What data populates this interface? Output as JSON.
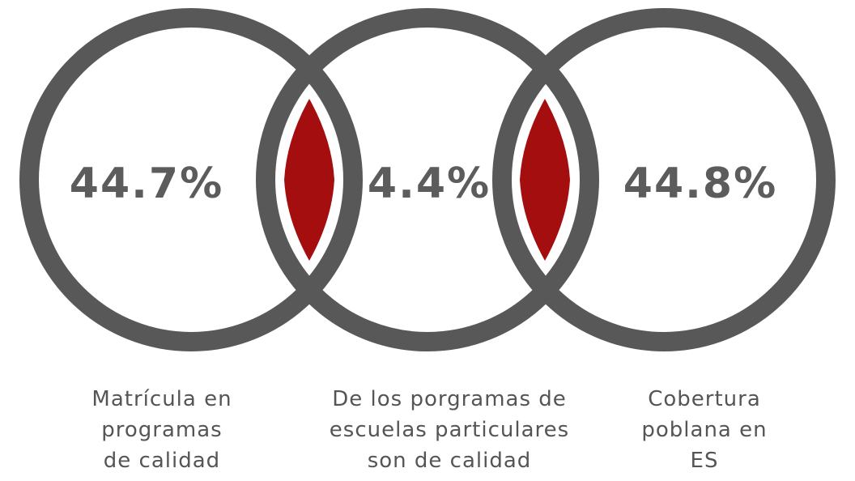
{
  "colors": {
    "ring": "#585858",
    "overlap_fill": "#a50e0e",
    "text": "#5c5c5c",
    "background": "#ffffff"
  },
  "circles": [
    {
      "value": "44.7%",
      "caption": [
        "Matrícula en",
        "programas",
        "de calidad"
      ]
    },
    {
      "value": "4.4%",
      "caption": [
        "De los porgramas de",
        "escuelas particulares",
        "son de calidad"
      ]
    },
    {
      "value": "44.8%",
      "caption": [
        "Cobertura",
        "poblana en",
        "ES"
      ]
    }
  ]
}
